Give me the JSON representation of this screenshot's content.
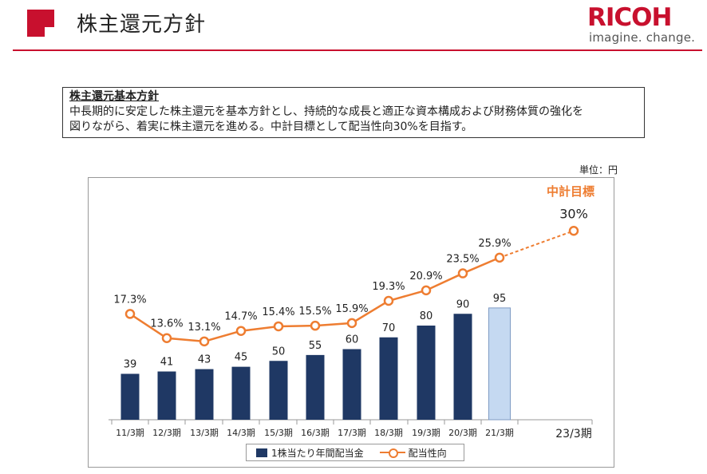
{
  "header": {
    "title": "株主還元方針",
    "logo": "RICOH",
    "tagline": "imagine. change."
  },
  "policy": {
    "title": "株主還元基本方針",
    "line1": "中長期的に安定した株主還元を基本方針とし、持続的な成長と適正な資本構成および財務体質の強化を",
    "line2": "図りながら、着実に株主還元を進める。中計目標として配当性向30%を目指す。"
  },
  "unit": "単位：円",
  "colors": {
    "accent": "#c8102e",
    "bar": "#1f3864",
    "bar_forecast": "#c5d9f1",
    "line": "#ee7d31",
    "target_label": "#ee7d31"
  },
  "chart_data": {
    "type": "bar",
    "categories": [
      "11/3期",
      "12/3期",
      "13/3期",
      "14/3期",
      "15/3期",
      "16/3期",
      "17/3期",
      "18/3期",
      "19/3期",
      "20/3期",
      "21/3期",
      "23/3期"
    ],
    "series": [
      {
        "name": "1株当たり年間配当金",
        "type": "bar",
        "values": [
          39,
          41,
          43,
          45,
          50,
          55,
          60,
          70,
          80,
          90,
          95,
          null
        ],
        "labels": [
          "39",
          "41",
          "43",
          "45",
          "50",
          "55",
          "60",
          "70",
          "80",
          "90",
          "95",
          ""
        ],
        "forecast_index": 10
      },
      {
        "name": "配当性向",
        "type": "line",
        "values": [
          17.3,
          13.6,
          13.1,
          14.7,
          15.4,
          15.5,
          15.9,
          19.3,
          20.9,
          23.5,
          25.9,
          30.0
        ],
        "labels": [
          "17.3%",
          "13.6%",
          "13.1%",
          "14.7%",
          "15.4%",
          "15.5%",
          "15.9%",
          "19.3%",
          "20.9%",
          "23.5%",
          "25.9%",
          "30%"
        ],
        "dashed_from_index": 10
      }
    ],
    "annotation": "中計目標",
    "legend_position": "bottom",
    "grid": false
  }
}
